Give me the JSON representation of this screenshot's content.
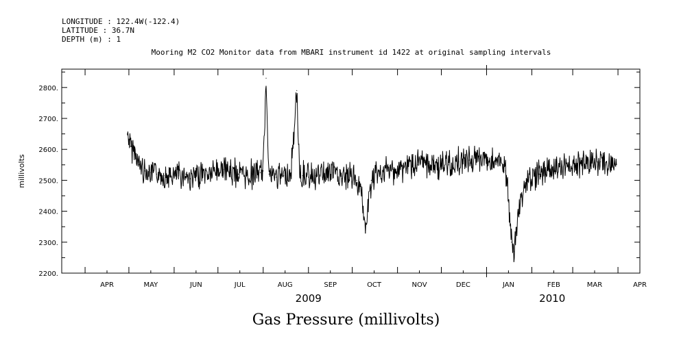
{
  "header": {
    "longitude": "LONGITUDE : 122.4W(-122.4)",
    "latitude": "LATITUDE : 36.7N",
    "depth": "DEPTH (m) : 1"
  },
  "chart_title": "Mooring M2 CO2 Monitor data from MBARI instrument id 1422 at original sampling intervals",
  "bottom_title": "Gas Pressure (millivolts)",
  "chart_data": {
    "type": "line",
    "title": "Mooring M2 CO2 Monitor data from MBARI instrument id 1422 at original sampling intervals",
    "xlabel": "",
    "ylabel": "millivolts",
    "ylim": [
      2200,
      2850
    ],
    "yticks": [
      2200,
      2300,
      2400,
      2500,
      2600,
      2700,
      2800
    ],
    "ytick_labels": [
      "2200.",
      "2300.",
      "2400.",
      "2500.",
      "2600.",
      "2700.",
      "2800."
    ],
    "xlim": [
      "2009-03-16",
      "2010-04-16"
    ],
    "xtick_labels": [
      {
        "label": "APR",
        "date": "2009-04-16"
      },
      {
        "label": "MAY",
        "date": "2009-05-16"
      },
      {
        "label": "JUN",
        "date": "2009-06-16"
      },
      {
        "label": "JUL",
        "date": "2009-07-16"
      },
      {
        "label": "AUG",
        "date": "2009-08-16"
      },
      {
        "label": "SEP",
        "date": "2009-09-16"
      },
      {
        "label": "OCT",
        "date": "2009-10-16"
      },
      {
        "label": "NOV",
        "date": "2009-11-16"
      },
      {
        "label": "DEC",
        "date": "2009-12-16"
      },
      {
        "label": "JAN",
        "date": "2010-01-16"
      },
      {
        "label": "FEB",
        "date": "2010-02-16"
      },
      {
        "label": "MAR",
        "date": "2010-03-16"
      },
      {
        "label": "APR",
        "date": "2010-04-16"
      }
    ],
    "year_labels": [
      {
        "label": "2009",
        "date": "2009-09-01"
      },
      {
        "label": "2010",
        "date": "2010-02-15"
      }
    ],
    "grid": false,
    "series": [
      {
        "x": [
          "2009-04-30",
          "2009-05-02",
          "2009-05-05",
          "2009-05-08",
          "2009-05-12",
          "2009-05-16",
          "2009-05-20",
          "2009-05-25",
          "2009-05-30",
          "2009-06-04",
          "2009-06-09",
          "2009-06-12",
          "2009-06-16",
          "2009-06-20",
          "2009-06-25",
          "2009-06-30",
          "2009-07-05",
          "2009-07-10",
          "2009-07-15",
          "2009-07-20",
          "2009-07-25",
          "2009-07-30",
          "2009-08-01",
          "2009-08-03",
          "2009-08-05",
          "2009-08-07",
          "2009-08-10",
          "2009-08-15",
          "2009-08-20",
          "2009-08-24",
          "2009-08-26",
          "2009-08-28",
          "2009-09-01",
          "2009-09-06",
          "2009-09-12",
          "2009-09-18",
          "2009-09-24",
          "2009-09-30",
          "2009-10-04",
          "2009-10-07",
          "2009-10-10",
          "2009-10-14",
          "2009-10-20",
          "2009-10-26",
          "2009-11-01",
          "2009-11-08",
          "2009-11-15",
          "2009-11-22",
          "2009-11-29",
          "2009-12-06",
          "2009-12-13",
          "2009-12-20",
          "2009-12-27",
          "2010-01-02",
          "2010-01-08",
          "2010-01-12",
          "2010-01-14",
          "2010-01-16",
          "2010-01-18",
          "2010-01-20",
          "2010-01-24",
          "2010-01-30",
          "2010-02-06",
          "2010-02-13",
          "2010-02-20",
          "2010-02-27",
          "2010-03-06",
          "2010-03-13",
          "2010-03-20",
          "2010-03-26",
          "2010-03-31"
        ],
        "y": [
          2650,
          2610,
          2590,
          2550,
          2530,
          2525,
          2520,
          2515,
          2510,
          2515,
          2520,
          2505,
          2510,
          2525,
          2520,
          2530,
          2535,
          2525,
          2520,
          2515,
          2520,
          2525,
          2530,
          2830,
          2520,
          2515,
          2510,
          2515,
          2515,
          2790,
          2520,
          2515,
          2510,
          2515,
          2520,
          2525,
          2505,
          2515,
          2500,
          2480,
          2330,
          2500,
          2520,
          2530,
          2530,
          2545,
          2550,
          2555,
          2545,
          2550,
          2560,
          2565,
          2570,
          2565,
          2560,
          2550,
          2530,
          2430,
          2300,
          2270,
          2440,
          2510,
          2520,
          2540,
          2545,
          2550,
          2555,
          2560,
          2560,
          2555,
          2550
        ]
      }
    ]
  }
}
